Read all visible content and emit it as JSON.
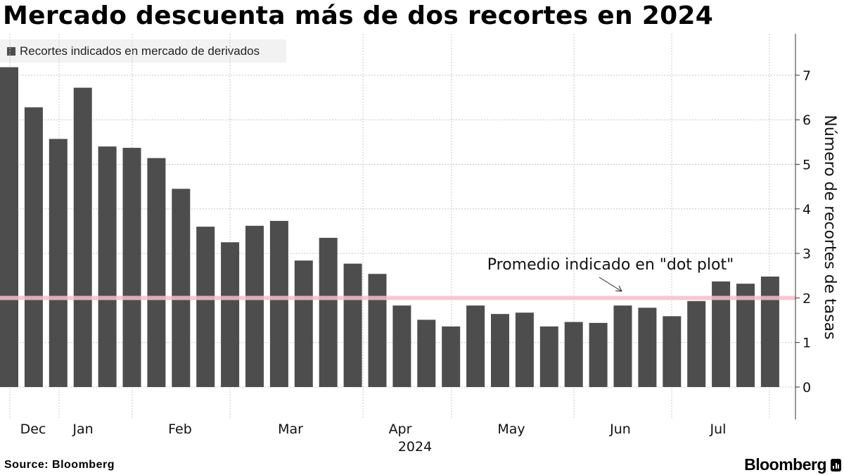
{
  "title": "Mercado descuenta más de dos recortes en 2024",
  "source": "Source: Bloomberg",
  "brand": "Bloomberg",
  "chart_data": {
    "type": "bar",
    "title": "Mercado descuenta más de dos recortes en 2024",
    "legend": [
      "Recortes indicados en mercado de derivados"
    ],
    "legend_position": "top-left",
    "ylabel": "Número de recortes de tasas",
    "y_axis_side": "right",
    "ylim": [
      -0.7,
      7.9
    ],
    "yticks": [
      0,
      1,
      2,
      3,
      4,
      5,
      6,
      7
    ],
    "grid": true,
    "x_ticks": [
      "Dec",
      "Jan",
      "Feb",
      "Mar",
      "Apr",
      "May",
      "Jun",
      "Jul"
    ],
    "x_year_label": "2024",
    "series": [
      {
        "name": "Recortes indicados en mercado de derivados",
        "color": "#4d4d4d",
        "values": [
          7.18,
          6.28,
          5.57,
          6.72,
          5.4,
          5.37,
          5.14,
          4.45,
          3.6,
          3.25,
          3.62,
          3.73,
          2.84,
          3.35,
          2.77,
          2.54,
          1.83,
          1.51,
          1.36,
          1.83,
          1.64,
          1.67,
          1.36,
          1.46,
          1.44,
          1.83,
          1.78,
          1.59,
          1.93,
          2.37,
          2.32,
          2.48
        ]
      }
    ],
    "reference_line": {
      "value": 2.0,
      "color": "#f7c0cb",
      "annotation": "Promedio indicado en \"dot plot\""
    }
  }
}
